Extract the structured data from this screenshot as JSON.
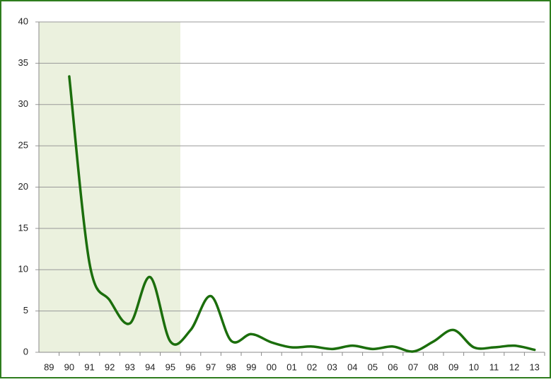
{
  "chart_data": {
    "type": "line",
    "categories": [
      "89",
      "90",
      "91",
      "92",
      "93",
      "94",
      "95",
      "96",
      "97",
      "98",
      "99",
      "00",
      "01",
      "02",
      "03",
      "04",
      "05",
      "06",
      "07",
      "08",
      "09",
      "10",
      "11",
      "12",
      "13"
    ],
    "values": [
      null,
      33.4,
      10.8,
      6.3,
      3.5,
      9.1,
      1.3,
      2.7,
      6.8,
      1.4,
      2.2,
      1.2,
      0.6,
      0.7,
      0.4,
      0.8,
      0.4,
      0.7,
      0.1,
      1.3,
      2.7,
      0.6,
      0.6,
      0.8,
      0.3
    ],
    "color": "#1b6e0c",
    "ylim": [
      0,
      40
    ],
    "yticks": [
      0,
      5,
      10,
      15,
      20,
      25,
      30,
      35,
      40
    ],
    "grid": true
  }
}
